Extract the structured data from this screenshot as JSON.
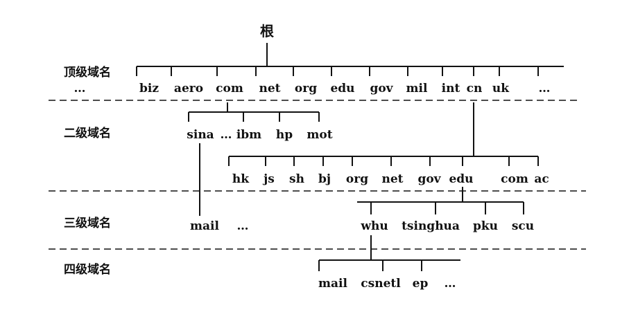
{
  "root": "根",
  "levels": [
    "顶级域名",
    "二级域名",
    "三级域名",
    "四级域名"
  ],
  "top_level": {
    "leading_ellipsis": "…",
    "nodes": [
      "biz",
      "aero",
      "com",
      "net",
      "org",
      "edu",
      "gov",
      "mil",
      "int",
      "cn",
      "uk"
    ],
    "trailing_ellipsis": "…"
  },
  "second_level_com": [
    "sina",
    "…",
    "ibm",
    "hp",
    "mot"
  ],
  "second_level_cn": [
    "hk",
    "js",
    "sh",
    "bj",
    "org",
    "net",
    "gov",
    "edu",
    "com",
    "ac"
  ],
  "third_level_sina": [
    "mail",
    "…"
  ],
  "third_level_edu": [
    "whu",
    "tsinghua",
    "pku",
    "scu"
  ],
  "fourth_level_whu": [
    "mail",
    "csnetl",
    "ep",
    "…"
  ]
}
